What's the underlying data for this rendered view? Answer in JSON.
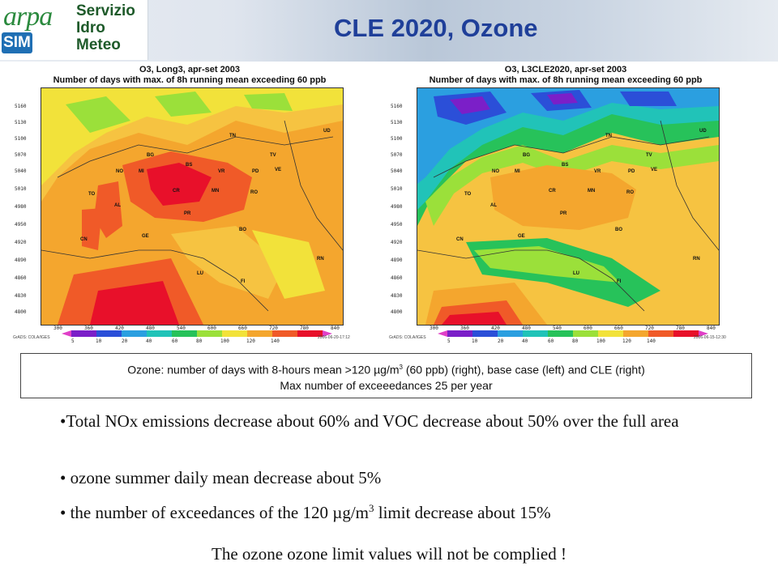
{
  "logo": {
    "wordmark": "arpa",
    "badge": "SIM",
    "line1": "Servizio",
    "line2": "Idro",
    "line3": "Meteo"
  },
  "title": "CLE 2020, Ozone",
  "maps": [
    {
      "caption_line1": "O3, Long3, apr-set 2003",
      "caption_line2": "Number of days with max. of 8h running mean exceeding 60 ppb",
      "timestamp": "2006-06-20-17:12"
    },
    {
      "caption_line1": "O3, L3CLE2020, apr-set 2003",
      "caption_line2": "Number of days with max. of 8h running mean exceeding 60 ppb",
      "timestamp": "2006-06-15-12:30"
    }
  ],
  "map_axes": {
    "y_ticks": [
      "5160",
      "5130",
      "5100",
      "5070",
      "5040",
      "5010",
      "4980",
      "4950",
      "4920",
      "4890",
      "4860",
      "4830",
      "4800"
    ],
    "x_ticks": [
      "300",
      "360",
      "420",
      "480",
      "540",
      "600",
      "660",
      "720",
      "780",
      "840"
    ],
    "grads_label": "GrADS: COLA/IGES"
  },
  "colorbar": {
    "labels": [
      "5",
      "10",
      "20",
      "40",
      "60",
      "80",
      "100",
      "120",
      "140"
    ],
    "colors": [
      "#7b1fc8",
      "#2b4fd8",
      "#2b9fe0",
      "#21c3b8",
      "#27c25a",
      "#9be03a",
      "#f2e23a",
      "#f4a62e",
      "#f05a28",
      "#e8102a"
    ]
  },
  "provinces": [
    "TN",
    "UD",
    "BG",
    "BS",
    "TV",
    "MI",
    "VR",
    "PD",
    "VE",
    "NO",
    "TO",
    "CR",
    "MN",
    "RO",
    "AL",
    "PR",
    "BO",
    "CN",
    "GE",
    "RN",
    "LU",
    "FI"
  ],
  "caption": {
    "line1_a": "Ozone: number of days with 8-hours mean >120 µg/m",
    "line1_sup": "3",
    "line1_b": " (60 ppb) (right), base case (left) and CLE (right)",
    "line2": "Max number of exceeedances 25 per year"
  },
  "bullets": {
    "b1": "•Total NOx emissions decrease about 60% and VOC decrease about 50% over the full area",
    "b2": "• ozone summer daily mean decrease about 5%",
    "b3_a": "• the number of exceedances of the 120 µg/m",
    "b3_sup": "3",
    "b3_b": " limit decrease about 15%"
  },
  "conclusion": "The ozone ozone limit values will not be complied !"
}
